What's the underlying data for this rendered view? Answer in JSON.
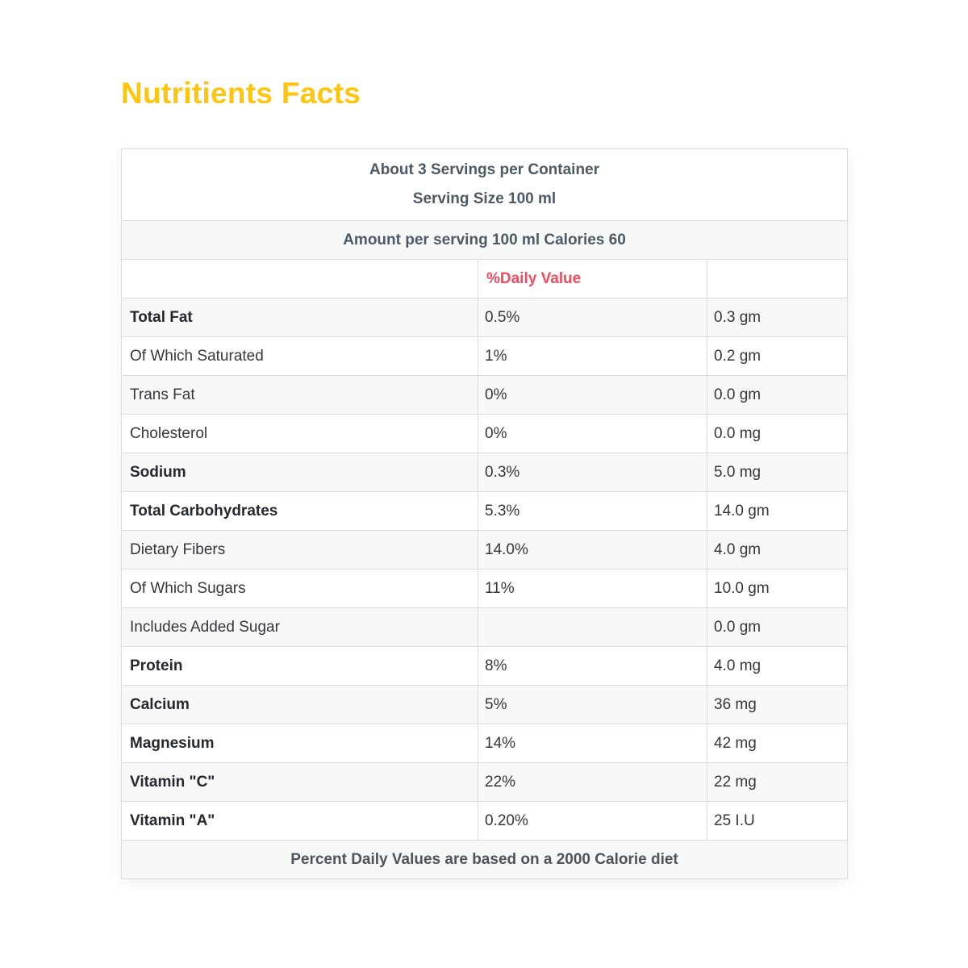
{
  "page": {
    "title": "Nutritients Facts"
  },
  "table": {
    "servings_line1": "About 3 Servings per Container",
    "servings_line2": "Serving Size 100 ml",
    "amount_line": "Amount per serving 100 ml Calories 60",
    "daily_value_header": "%Daily Value",
    "rows": [
      {
        "label": "Total Fat",
        "bold": true,
        "daily_value": "0.5%",
        "amount": "0.3 gm"
      },
      {
        "label": "Of Which Saturated",
        "bold": false,
        "daily_value": "1%",
        "amount": "0.2 gm"
      },
      {
        "label": "Trans Fat",
        "bold": false,
        "daily_value": "0%",
        "amount": "0.0 gm"
      },
      {
        "label": "Cholesterol",
        "bold": false,
        "daily_value": "0%",
        "amount": "0.0 mg"
      },
      {
        "label": "Sodium",
        "bold": true,
        "daily_value": "0.3%",
        "amount": "5.0 mg"
      },
      {
        "label": "Total Carbohydrates",
        "bold": true,
        "daily_value": "5.3%",
        "amount": "14.0 gm"
      },
      {
        "label": "Dietary Fibers",
        "bold": false,
        "daily_value": "14.0%",
        "amount": "4.0 gm"
      },
      {
        "label": "Of Which Sugars",
        "bold": false,
        "daily_value": "11%",
        "amount": "10.0 gm"
      },
      {
        "label": "Includes Added Sugar",
        "bold": false,
        "daily_value": "",
        "amount": "0.0 gm"
      },
      {
        "label": "Protein",
        "bold": true,
        "daily_value": "8%",
        "amount": "4.0 mg"
      },
      {
        "label": "Calcium",
        "bold": true,
        "daily_value": "5%",
        "amount": "36 mg"
      },
      {
        "label": "Magnesium",
        "bold": true,
        "daily_value": "14%",
        "amount": "42 mg"
      },
      {
        "label": "Vitamin \"C\"",
        "bold": true,
        "daily_value": "22%",
        "amount": "22 mg"
      },
      {
        "label": "Vitamin \"A\"",
        "bold": true,
        "daily_value": "0.20%",
        "amount": "25 I.U"
      }
    ],
    "footer": "Percent Daily Values are based on a 2000 Calorie diet"
  },
  "colors": {
    "title_color": "#ffc40e",
    "daily_value_color": "#f8485c",
    "header_text_color": "#4c5a66",
    "footer_text_color": "#4c545c",
    "label_bold_color": "#24292e",
    "text_color": "#33383d",
    "border_color": "#dadcdd",
    "stripe_bg": "#f7f8f8",
    "page_bg": "#ffffff"
  }
}
